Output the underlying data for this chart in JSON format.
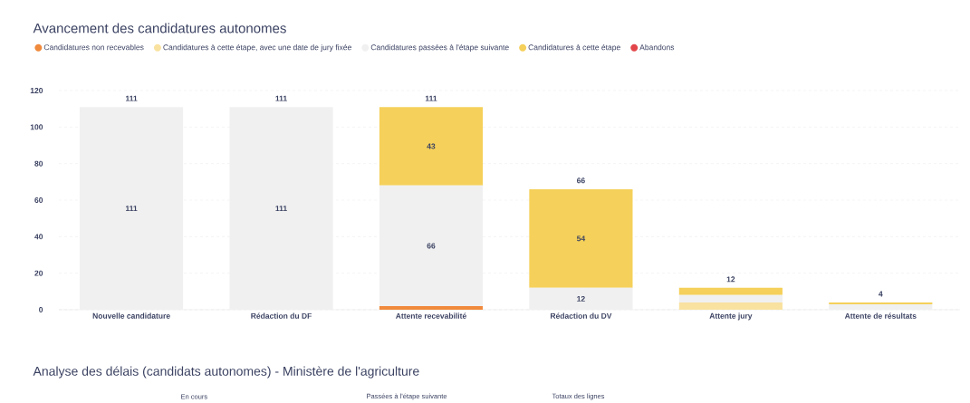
{
  "chart_data": {
    "type": "bar",
    "stacked": true,
    "title": "Avancement des candidatures autonomes",
    "categories": [
      "Nouvelle candidature",
      "Rédaction du DF",
      "Attente recevabilité",
      "Rédaction du DV",
      "Attente jury",
      "Attente de résultats"
    ],
    "series": [
      {
        "name": "Candidatures non recevables",
        "color": "#f08a3c",
        "values": [
          0,
          0,
          2,
          0,
          0,
          0
        ]
      },
      {
        "name": "Candidatures à cette étape, avec une date de jury fixée",
        "color": "#f9e2a0",
        "values": [
          0,
          0,
          0,
          0,
          4,
          0
        ]
      },
      {
        "name": "Candidatures passées à l'étape suivante",
        "color": "#f0f0f0",
        "values": [
          111,
          111,
          66,
          12,
          4,
          3
        ],
        "value_labels": [
          "111",
          "111",
          "66",
          "12",
          null,
          null
        ]
      },
      {
        "name": "Candidatures à cette étape",
        "color": "#f5d05a",
        "values": [
          0,
          0,
          43,
          54,
          4,
          1
        ],
        "value_labels": [
          null,
          null,
          "43",
          "54",
          null,
          null
        ]
      },
      {
        "name": "Abandons",
        "color": "#e2464a",
        "values": [
          0,
          0,
          0,
          0,
          0,
          0
        ]
      }
    ],
    "totals": [
      "111",
      "111",
      "111",
      "66",
      "12",
      "4"
    ],
    "ylim": [
      0,
      120
    ],
    "yticks": [
      0,
      20,
      40,
      60,
      80,
      100,
      120
    ],
    "grid": "y",
    "legend": "top left",
    "annotations": [
      "Analyse des délais (candidats autonomes) - Ministère de l'agriculture",
      "En cours",
      "Passées à l'étape suivante",
      "Totaux des lignes"
    ]
  }
}
